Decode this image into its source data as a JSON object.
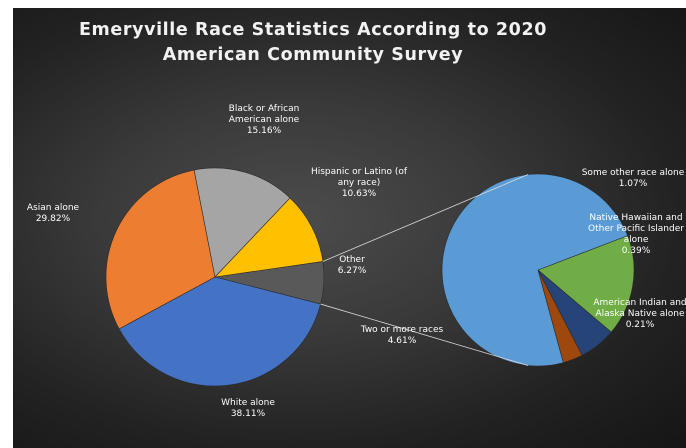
{
  "chart_data": {
    "type": "pie",
    "title_lines": [
      "Emeryville Race Statistics According to 2020",
      "American Community Survey"
    ],
    "main_pie": [
      {
        "label": "White alone",
        "value": 38.11,
        "display": "38.11%",
        "color": "#4472c4"
      },
      {
        "label": "Asian alone",
        "value": 29.82,
        "display": "29.82%",
        "color": "#ed7d31"
      },
      {
        "label": "Black or African American alone",
        "value": 15.16,
        "display": "15.16%",
        "color": "#a5a5a5"
      },
      {
        "label": "Hispanic or Latino (of any race)",
        "value": 10.63,
        "display": "10.63%",
        "color": "#ffc000"
      },
      {
        "label": "Other",
        "value": 6.27,
        "display": "6.27%",
        "color": "#595959"
      }
    ],
    "secondary_pie": [
      {
        "label": "Two or more races",
        "value": 4.61,
        "display": "4.61%",
        "color": "#5b9bd5"
      },
      {
        "label": "Some other race alone",
        "value": 1.07,
        "display": "1.07%",
        "color": "#70ad47"
      },
      {
        "label": "Native Hawaiian and Other Pacific Islander alone",
        "value": 0.39,
        "display": "0.39%",
        "color": "#264478"
      },
      {
        "label": "American Indian and Alaska Native alone",
        "value": 0.21,
        "display": "0.21%",
        "color": "#9e480e"
      }
    ],
    "label_text": {
      "white": [
        "White alone",
        "38.11%"
      ],
      "asian": [
        "Asian alone",
        "29.82%"
      ],
      "black": [
        "Black or African",
        "American alone",
        "15.16%"
      ],
      "hispanic": [
        "Hispanic or Latino (of",
        "any race)",
        "10.63%"
      ],
      "other": [
        "Other",
        "6.27%"
      ],
      "two_or_more": [
        "Two or more races",
        "4.61%"
      ],
      "some_other": [
        "Some other race alone",
        "1.07%"
      ],
      "native_hawaiian": [
        "Native Hawaiian and",
        "Other Pacific Islander",
        "alone",
        "0.39%"
      ],
      "american_indian": [
        "American Indian and",
        "Alaska Native alone",
        "0.21%"
      ]
    },
    "connector_color": "#d9d9d9"
  }
}
